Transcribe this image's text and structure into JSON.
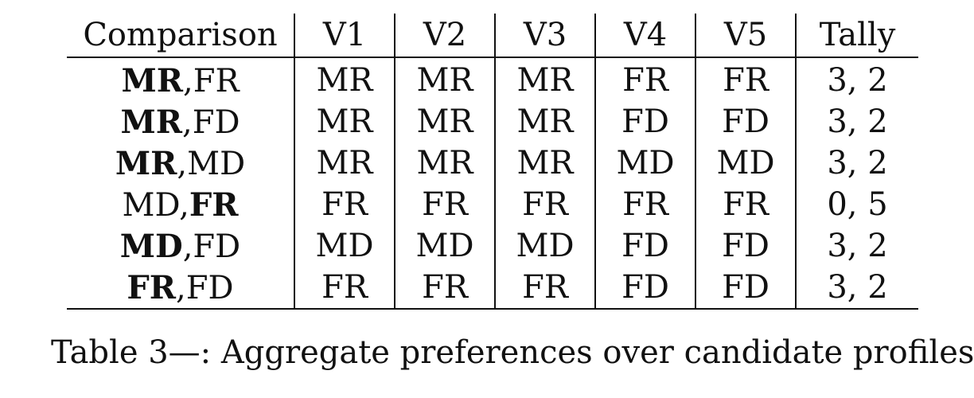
{
  "table": {
    "headers": [
      "Comparison",
      "V1",
      "V2",
      "V3",
      "V4",
      "V5",
      "Tally"
    ],
    "rows": [
      {
        "first": "MR",
        "sep": ",",
        "second": "FR",
        "winner": "first",
        "votes": [
          "MR",
          "MR",
          "MR",
          "FR",
          "FR"
        ],
        "tally": "3, 2"
      },
      {
        "first": "MR",
        "sep": ",",
        "second": "FD",
        "winner": "first",
        "votes": [
          "MR",
          "MR",
          "MR",
          "FD",
          "FD"
        ],
        "tally": "3, 2"
      },
      {
        "first": "MR",
        "sep": ",",
        "second": "MD",
        "winner": "first",
        "votes": [
          "MR",
          "MR",
          "MR",
          "MD",
          "MD"
        ],
        "tally": "3, 2"
      },
      {
        "first": "MD",
        "sep": ",",
        "second": "FR",
        "winner": "second",
        "votes": [
          "FR",
          "FR",
          "FR",
          "FR",
          "FR"
        ],
        "tally": "0, 5"
      },
      {
        "first": "MD",
        "sep": ",",
        "second": "FD",
        "winner": "first",
        "votes": [
          "MD",
          "MD",
          "MD",
          "FD",
          "FD"
        ],
        "tally": "3, 2"
      },
      {
        "first": "FR",
        "sep": ",",
        "second": "FD",
        "winner": "first",
        "votes": [
          "FR",
          "FR",
          "FR",
          "FD",
          "FD"
        ],
        "tally": "3, 2"
      }
    ]
  },
  "caption": "Table 3—: Aggregate preferences over candidate profiles"
}
